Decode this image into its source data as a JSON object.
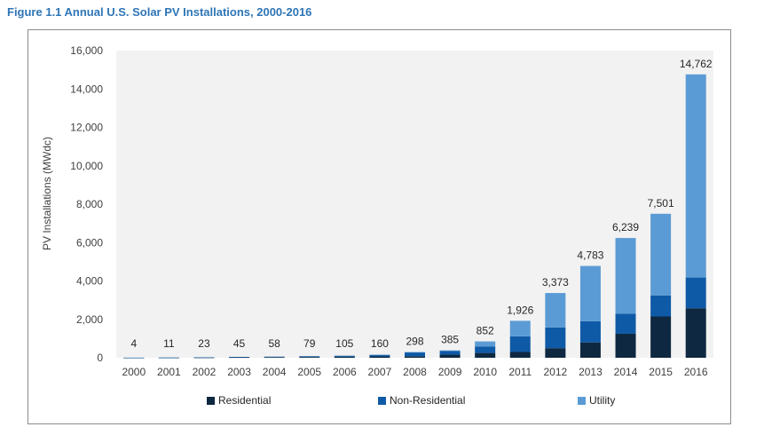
{
  "figure_title": "Figure 1.1 Annual U.S. Solar PV Installations, 2000-2016",
  "chart_data": {
    "type": "bar",
    "stacked": true,
    "categories": [
      "2000",
      "2001",
      "2002",
      "2003",
      "2004",
      "2005",
      "2006",
      "2007",
      "2008",
      "2009",
      "2010",
      "2011",
      "2012",
      "2013",
      "2014",
      "2015",
      "2016"
    ],
    "totals": [
      4,
      11,
      23,
      45,
      58,
      79,
      105,
      160,
      298,
      385,
      852,
      1926,
      3373,
      4783,
      6239,
      7501,
      14762
    ],
    "total_labels": [
      "4",
      "11",
      "23",
      "45",
      "58",
      "79",
      "105",
      "160",
      "298",
      "385",
      "852",
      "1,926",
      "3,373",
      "4,783",
      "6,239",
      "7,501",
      "14,762"
    ],
    "series": [
      {
        "name": "Residential",
        "color": "#0e2841",
        "values": [
          2,
          6,
          12,
          23,
          30,
          40,
          55,
          70,
          80,
          160,
          250,
          300,
          500,
          800,
          1250,
          2150,
          2580
        ]
      },
      {
        "name": "Non-Residential",
        "color": "#0f5aa6",
        "values": [
          2,
          5,
          11,
          22,
          28,
          39,
          50,
          85,
          200,
          200,
          340,
          820,
          1080,
          1100,
          1050,
          1100,
          1600
        ]
      },
      {
        "name": "Utility",
        "color": "#5b9bd5",
        "values": [
          0,
          0,
          0,
          0,
          0,
          0,
          0,
          5,
          18,
          25,
          262,
          806,
          1793,
          2883,
          3939,
          4251,
          10582
        ]
      }
    ],
    "ylabel": "PV Installations (MWdc)",
    "xlabel": "",
    "ylim": [
      0,
      16000
    ],
    "yticks": [
      0,
      2000,
      4000,
      6000,
      8000,
      10000,
      12000,
      14000,
      16000
    ],
    "ytick_labels": [
      "0",
      "2,000",
      "4,000",
      "6,000",
      "8,000",
      "10,000",
      "12,000",
      "14,000",
      "16,000"
    ],
    "grid": false,
    "plot_background": "#f2f2f2",
    "legend_position": "bottom"
  }
}
